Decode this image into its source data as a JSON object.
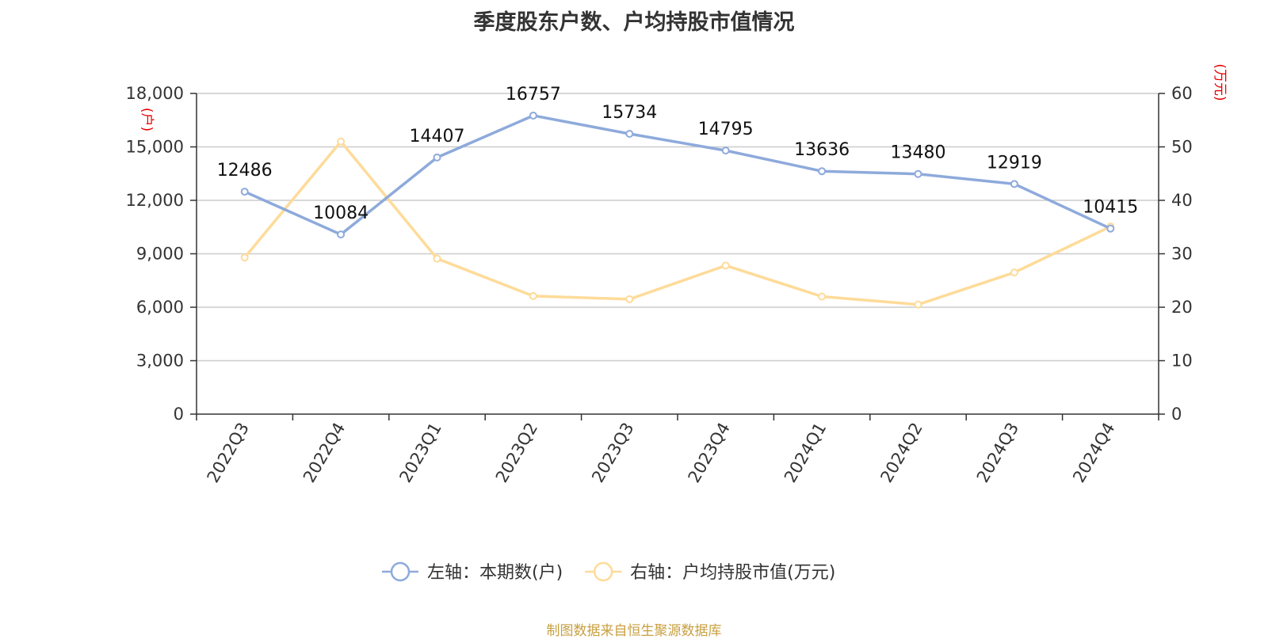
{
  "title": "季度股东户数、户均持股市值情况",
  "source": "制图数据来自恒生聚源数据库",
  "chart_data": {
    "type": "line",
    "title": "季度股东户数、户均持股市值情况",
    "categories": [
      "2022Q3",
      "2022Q4",
      "2023Q1",
      "2023Q2",
      "2023Q3",
      "2023Q4",
      "2024Q1",
      "2024Q2",
      "2024Q3",
      "2024Q4"
    ],
    "left_axis": {
      "unit": "(户)",
      "ylim": [
        0,
        18000
      ],
      "ticks": [
        0,
        3000,
        6000,
        9000,
        12000,
        15000,
        18000
      ],
      "tick_labels": [
        "0",
        "3,000",
        "6,000",
        "9,000",
        "12,000",
        "15,000",
        "18,000"
      ]
    },
    "right_axis": {
      "unit": "(万元)",
      "ylim": [
        0,
        60
      ],
      "ticks": [
        0,
        10,
        20,
        30,
        40,
        50,
        60
      ],
      "tick_labels": [
        "0",
        "10",
        "20",
        "30",
        "40",
        "50",
        "60"
      ]
    },
    "grid": true,
    "legend_position": "bottom",
    "series": [
      {
        "name": "左轴：本期数(户)",
        "axis": "left",
        "color": "#8eaadb",
        "values": [
          12486,
          10084,
          14407,
          16757,
          15734,
          14795,
          13636,
          13480,
          12919,
          10415
        ],
        "data_labels": [
          "12486",
          "10084",
          "14407",
          "16757",
          "15734",
          "14795",
          "13636",
          "13480",
          "12919",
          "10415"
        ]
      },
      {
        "name": "右轴：户均持股市值(万元)",
        "axis": "right",
        "color": "#fedb99",
        "values": [
          29.3,
          51.0,
          29.1,
          22.1,
          21.5,
          27.8,
          22.0,
          20.5,
          26.5,
          35.1
        ]
      }
    ]
  }
}
